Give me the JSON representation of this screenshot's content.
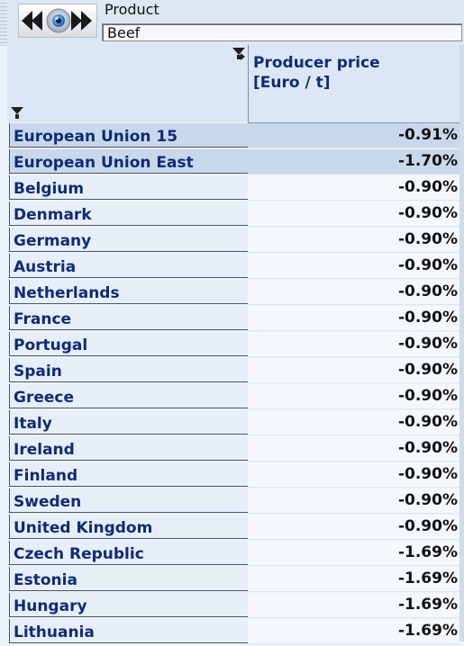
{
  "toolbar": {
    "product_label": "Product",
    "product_value": "Beef"
  },
  "table": {
    "column_header": "Producer price\n[Euro / t]",
    "rows": [
      {
        "region": "European Union 15",
        "value": "-0.91%",
        "aggregate": true
      },
      {
        "region": "European Union East",
        "value": "-1.70%",
        "aggregate": true
      },
      {
        "region": "Belgium",
        "value": "-0.90%",
        "aggregate": false
      },
      {
        "region": "Denmark",
        "value": "-0.90%",
        "aggregate": false
      },
      {
        "region": "Germany",
        "value": "-0.90%",
        "aggregate": false
      },
      {
        "region": "Austria",
        "value": "-0.90%",
        "aggregate": false
      },
      {
        "region": "Netherlands",
        "value": "-0.90%",
        "aggregate": false
      },
      {
        "region": "France",
        "value": "-0.90%",
        "aggregate": false
      },
      {
        "region": "Portugal",
        "value": "-0.90%",
        "aggregate": false
      },
      {
        "region": "Spain",
        "value": "-0.90%",
        "aggregate": false
      },
      {
        "region": "Greece",
        "value": "-0.90%",
        "aggregate": false
      },
      {
        "region": "Italy",
        "value": "-0.90%",
        "aggregate": false
      },
      {
        "region": "Ireland",
        "value": "-0.90%",
        "aggregate": false
      },
      {
        "region": "Finland",
        "value": "-0.90%",
        "aggregate": false
      },
      {
        "region": "Sweden",
        "value": "-0.90%",
        "aggregate": false
      },
      {
        "region": "United Kingdom",
        "value": "-0.90%",
        "aggregate": false
      },
      {
        "region": "Czech Republic",
        "value": "-1.69%",
        "aggregate": false
      },
      {
        "region": "Estonia",
        "value": "-1.69%",
        "aggregate": false
      },
      {
        "region": "Hungary",
        "value": "-1.69%",
        "aggregate": false
      },
      {
        "region": "Lithuania",
        "value": "-1.69%",
        "aggregate": false
      }
    ]
  },
  "icons": {
    "nav_first": "first-icon",
    "nav_prev": "previous-icon",
    "nav_view": "eye-icon",
    "nav_next": "next-icon",
    "nav_last": "last-icon",
    "filter": "filter-icon"
  }
}
